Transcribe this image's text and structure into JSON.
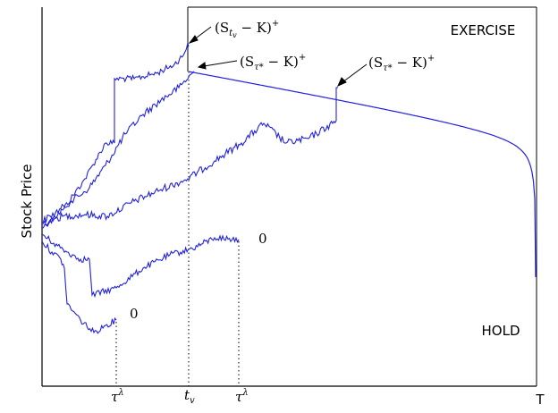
{
  "labels": {
    "y_axis": "Stock Price",
    "x_axis_end": "T",
    "region_upper": "EXERCISE",
    "region_lower": "HOLD"
  },
  "annotations": {
    "payoff_tv": {
      "open": "(S",
      "sub": "t",
      "subsub": "v",
      "close": " − K)",
      "sup": "+"
    },
    "payoff_tau_1": {
      "open": "(S",
      "sub": "τ*",
      "close": " − K)",
      "sup": "+"
    },
    "payoff_tau_2": {
      "open": "(S",
      "sub": "τ*",
      "close": " − K)",
      "sup": "+"
    },
    "zero_upper": "0",
    "zero_lower": "0"
  },
  "x_ticks": {
    "tau_lambda_1": {
      "base": "τ",
      "sup": "λ"
    },
    "t_v": {
      "base": "t",
      "sub": "v"
    },
    "tau_lambda_2": {
      "base": "τ",
      "sup": "λ"
    }
  },
  "colors": {
    "paths": "#2222dd",
    "axes": "#000000",
    "guides": "#000000"
  }
}
